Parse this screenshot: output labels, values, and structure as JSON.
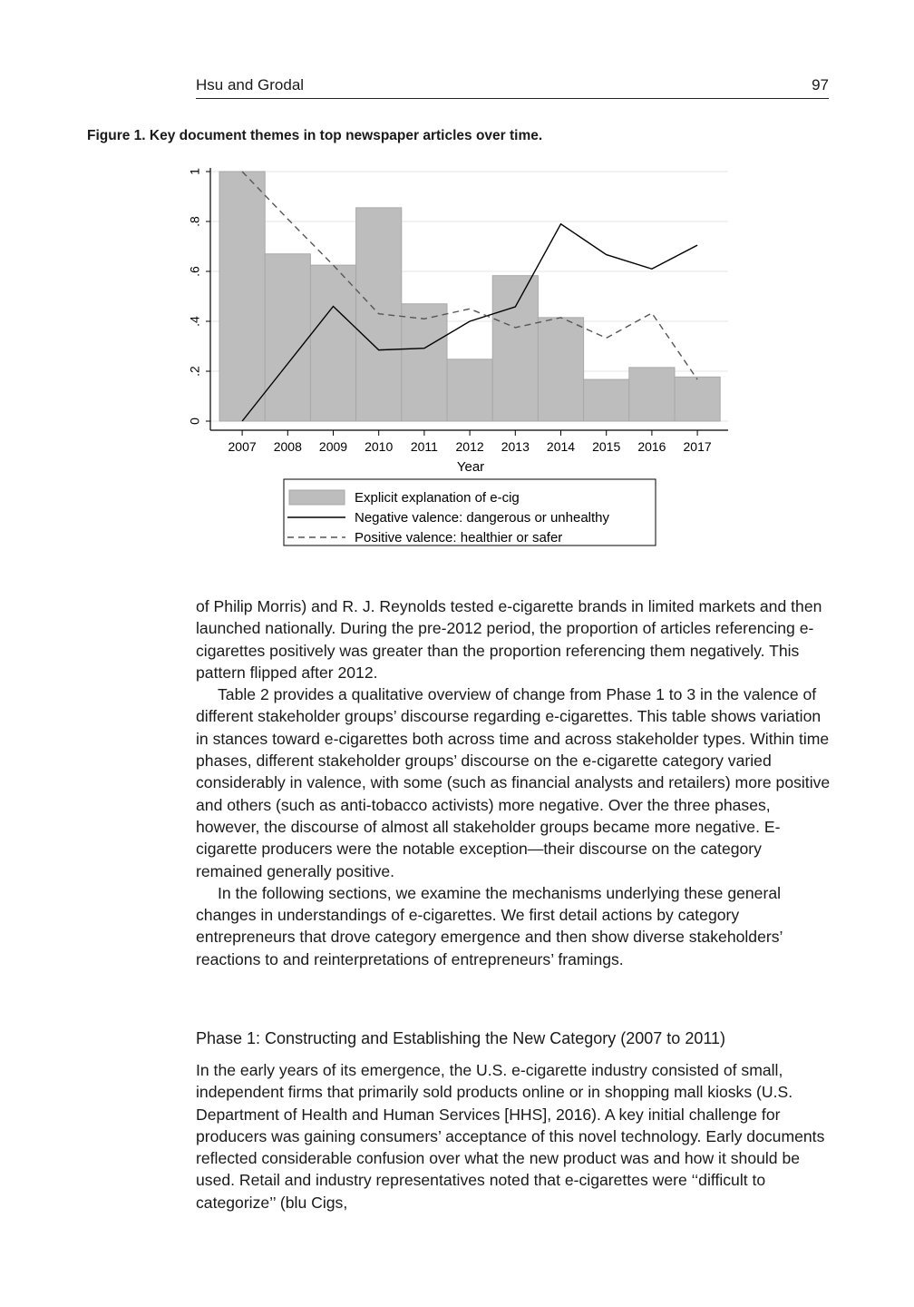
{
  "header": {
    "authors": "Hsu and Grodal",
    "page_number": "97"
  },
  "figure": {
    "caption": "Figure 1.  Key document themes in top newspaper articles over time."
  },
  "chart_data": {
    "type": "bar",
    "categories": [
      "2007",
      "2008",
      "2009",
      "2010",
      "2011",
      "2012",
      "2013",
      "2014",
      "2015",
      "2016",
      "2017"
    ],
    "x": [
      2007,
      2008,
      2009,
      2010,
      2011,
      2012,
      2013,
      2014,
      2015,
      2016,
      2017
    ],
    "series": [
      {
        "name": "Explicit explanation of e-cig",
        "type": "bar",
        "color": "#bdbdbd",
        "values": [
          1.0,
          0.67,
          0.625,
          0.855,
          0.47,
          0.248,
          0.583,
          0.415,
          0.167,
          0.215,
          0.177
        ]
      },
      {
        "name": "Negative valence: dangerous or unhealthy",
        "type": "line",
        "style": "solid",
        "color": "#000000",
        "values": [
          0.0,
          0.23,
          0.46,
          0.285,
          0.292,
          0.4,
          0.458,
          0.79,
          0.667,
          0.61,
          0.705
        ]
      },
      {
        "name": "Positive valence: healthier or safer",
        "type": "line",
        "style": "dashed",
        "color": "#555555",
        "values": [
          1.0,
          0.81,
          0.625,
          0.43,
          0.41,
          0.45,
          0.375,
          0.415,
          0.333,
          0.433,
          0.167
        ]
      }
    ],
    "xlabel": "Year",
    "ylabel": "",
    "ylim": [
      0,
      1
    ],
    "yticks": [
      0,
      0.2,
      0.4,
      0.6,
      0.8,
      1
    ],
    "ytick_labels": [
      "0",
      ".2",
      ".4",
      ".6",
      ".8",
      "1"
    ],
    "grid": true,
    "legend_position": "bottom"
  },
  "body": {
    "paragraphs": [
      "of Philip Morris) and R. J. Reynolds tested e-cigarette brands in limited markets and then launched nationally. During the pre-2012 period, the proportion of articles referencing e-cigarettes positively was greater than the proportion referencing them negatively. This pattern flipped after 2012.",
      "Table 2 provides a qualitative overview of change from Phase 1 to 3 in the valence of different stakeholder groups’ discourse regarding e-cigarettes. This table shows variation in stances toward e-cigarettes both across time and across stakeholder types. Within time phases, different stakeholder groups’ discourse on the e-cigarette category varied considerably in valence, with some (such as financial analysts and retailers) more positive and others (such as anti-tobacco activists) more negative. Over the three phases, however, the discourse of almost all stakeholder groups became more negative. E-cigarette producers were the notable exception—their discourse on the category remained generally positive.",
      "In the following sections, we examine the mechanisms underlying these general changes in understandings of e-cigarettes. We first detail actions by category entrepreneurs that drove category emergence and then show diverse stakeholders’ reactions to and reinterpretations of entrepreneurs’ framings."
    ],
    "section_heading": "Phase 1: Constructing and Establishing the New Category (2007 to 2011)",
    "section_paragraph": "In the early years of its emergence, the U.S. e-cigarette industry consisted of small, independent firms that primarily sold products online or in shopping mall kiosks (U.S. Department of Health and Human Services [HHS], 2016). A key initial challenge for producers was gaining consumers’ acceptance of this novel technology. Early documents reflected considerable confusion over what the new product was and how it should be used. Retail and industry representatives noted that e-cigarettes were ‘‘difficult to categorize’’ (blu Cigs,"
  }
}
